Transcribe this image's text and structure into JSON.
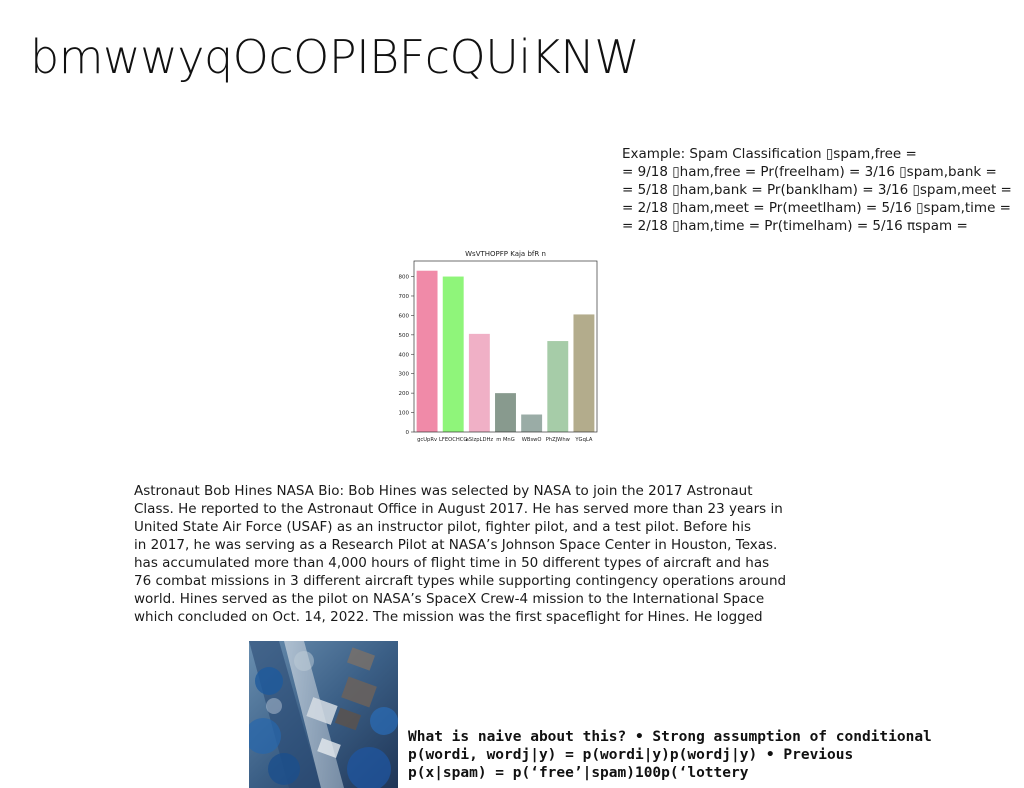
{
  "title": "bmwwyqOcOPIBFcQUiKNW",
  "spam_example": {
    "lines": [
      "Example: Spam Classification ▯spam,free =",
      "= 9/18 ▯ham,free = Pr(freelham) = 3/16 ▯spam,bank =",
      "= 5/18 ▯ham,bank = Pr(banklham) = 3/16 ▯spam,meet =",
      "= 2/18 ▯ham,meet = Pr(meetlham) = 5/16 ▯spam,time =",
      "= 2/18 ▯ham,time = Pr(timelham) = 5/16 πspam ="
    ]
  },
  "chart_data": {
    "type": "bar",
    "title": "WsVTHOPFP Kaja bfR n",
    "xlabel": "",
    "ylabel": "",
    "categories": [
      "gcUpRv",
      "LFEOCHCG",
      "aSlzpLDHz",
      "m MnG",
      "WBswO",
      "PhZJWhw",
      "YGqLA"
    ],
    "values": [
      830,
      800,
      505,
      200,
      90,
      468,
      605
    ],
    "colors": [
      "#f08aa8",
      "#8ff57a",
      "#f0b0c6",
      "#889a8e",
      "#9aaca6",
      "#a6cca8",
      "#b3ac8c"
    ],
    "ylim": [
      0,
      880
    ],
    "yticks": [
      0,
      100,
      200,
      300,
      400,
      500,
      600,
      700,
      800
    ],
    "grid": false
  },
  "bio": {
    "lines": [
      "Astronaut Bob Hines NASA Bio: Bob Hines was selected by NASA to join the 2017 Astronaut",
      "Class. He reported to the Astronaut Office in August 2017. He has served more than 23 years in",
      "United State Air Force (USAF) as an instructor pilot, fighter pilot, and a test pilot. Before his",
      "in 2017, he was serving as a Research Pilot at NASA’s Johnson Space Center in Houston, Texas.",
      "has accumulated more than 4,000 hours of flight time in 50 different types of aircraft and has",
      "76 combat missions in 3 different aircraft types while supporting contingency operations around",
      "world. Hines served as the pilot on NASA’s SpaceX Crew-4 mission to the International Space",
      "which concluded on Oct. 14, 2022. The mission was the first spaceflight for Hines. He logged"
    ]
  },
  "naive": {
    "lines": [
      "What is naive about this? • Strong assumption of conditional",
      "p(wordi, wordj|y) = p(wordi|y)p(wordj|y) • Previous",
      "p(x|spam) = p(‘free’|spam)100p(‘lottery"
    ]
  }
}
